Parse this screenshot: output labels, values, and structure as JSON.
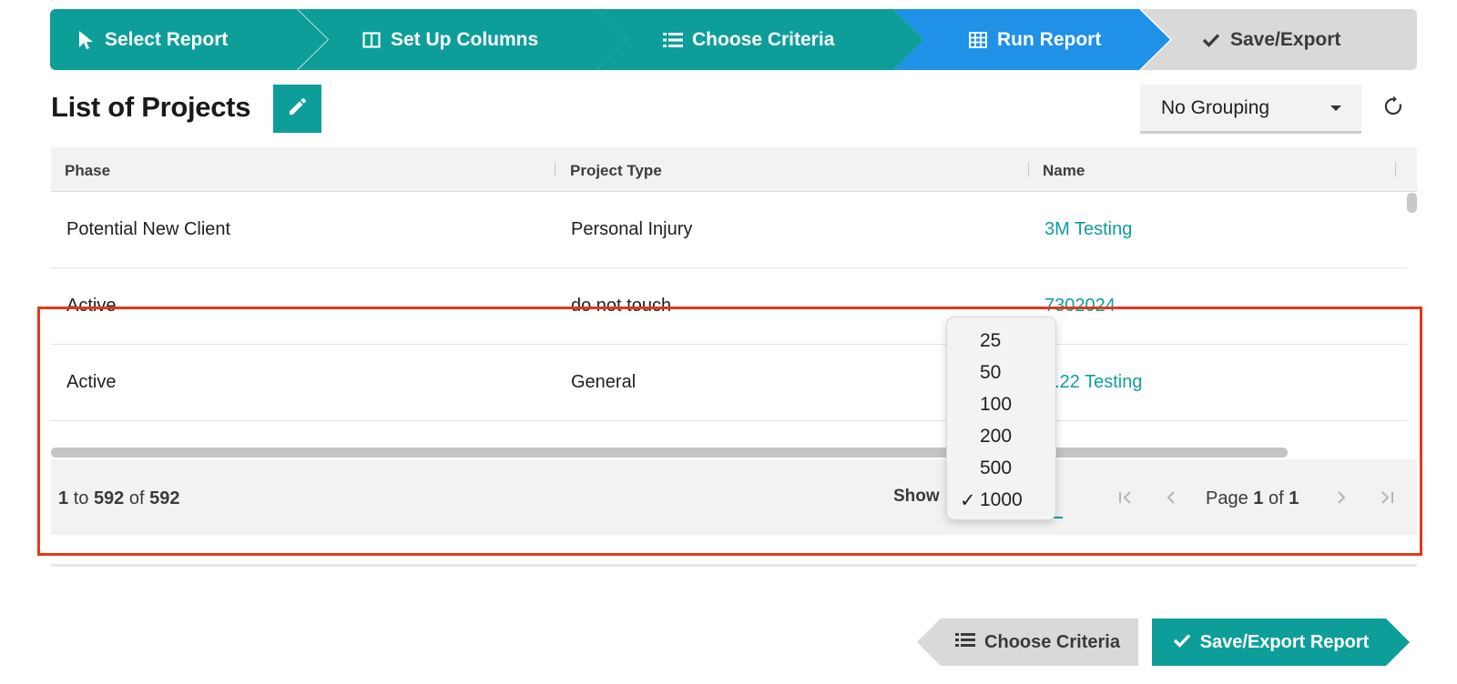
{
  "wizard": {
    "steps": [
      {
        "label": "Select Report",
        "icon": "cursor-icon",
        "state": "done"
      },
      {
        "label": "Set Up Columns",
        "icon": "columns-icon",
        "state": "done"
      },
      {
        "label": "Choose Criteria",
        "icon": "list-icon",
        "state": "done"
      },
      {
        "label": "Run Report",
        "icon": "table-icon",
        "state": "active"
      },
      {
        "label": "Save/Export",
        "icon": "check-icon",
        "state": "todo"
      }
    ]
  },
  "header": {
    "title": "List of Projects",
    "edit_icon": "pencil-icon",
    "grouping_value": "No Grouping",
    "refresh_icon": "refresh-icon"
  },
  "table": {
    "columns": [
      "Phase",
      "Project Type",
      "Name"
    ],
    "rows": [
      {
        "phase": "Potential New Client",
        "type": "Personal Injury",
        "name": "3M Testing"
      },
      {
        "phase": "Active",
        "type": "do not touch",
        "name": "7302024"
      },
      {
        "phase": "Active",
        "type": "General",
        "name": "7.22 Testing"
      }
    ]
  },
  "footer": {
    "range_from": "1",
    "range_to_word": "to",
    "range_to": "592",
    "range_of_word": "of",
    "range_total": "592",
    "show_label": "Show",
    "page_word": "Page",
    "page_current": "1",
    "page_of_word": "of",
    "page_total": "1"
  },
  "page_size_dropdown": {
    "options": [
      "25",
      "50",
      "100",
      "200",
      "500",
      "1000"
    ],
    "selected": "1000"
  },
  "actions": {
    "back_label": "Choose Criteria",
    "next_label": "Save/Export Report"
  },
  "colors": {
    "teal": "#0e9e9a",
    "active_blue": "#1f91e6",
    "inactive_gray": "#d9d9d9",
    "highlight_red": "#e0391b"
  }
}
